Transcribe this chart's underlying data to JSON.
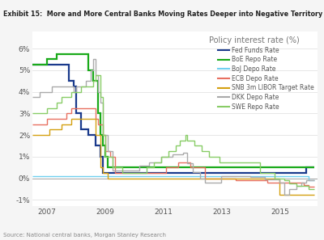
{
  "title": "Exhibit 15:  More and More Central Banks Moving Rates Deeper into Negative Territory",
  "chart_title": "Policy interest rate (%)",
  "source": "Source: National central banks, Morgan Stanley Research",
  "header_bg": "#e8e8e8",
  "plot_bg_color": "#ffffff",
  "fig_bg_color": "#f5f5f5",
  "legend": {
    "Fed Funds Rate": "#1a3a8c",
    "BoE Repo Rate": "#1aaa1a",
    "BoJ Depo Rate": "#70d0f0",
    "ECB Depo Rate": "#e87060",
    "SNB 3m LIBOR Target Rate": "#d4a010",
    "DKK Depo Rate": "#aaaaaa",
    "SWE Repo Rate": "#88cc66"
  },
  "ylim": [
    -1.3,
    6.8
  ],
  "yticks": [
    -1,
    0,
    1,
    2,
    3,
    4,
    5,
    6
  ],
  "yticklabels": [
    "-1%",
    "0%",
    "1%",
    "2%",
    "3%",
    "4%",
    "5%",
    "6%"
  ],
  "xlim": [
    2006.5,
    2016.3
  ],
  "xticks": [
    2007,
    2009,
    2011,
    2013,
    2015
  ]
}
